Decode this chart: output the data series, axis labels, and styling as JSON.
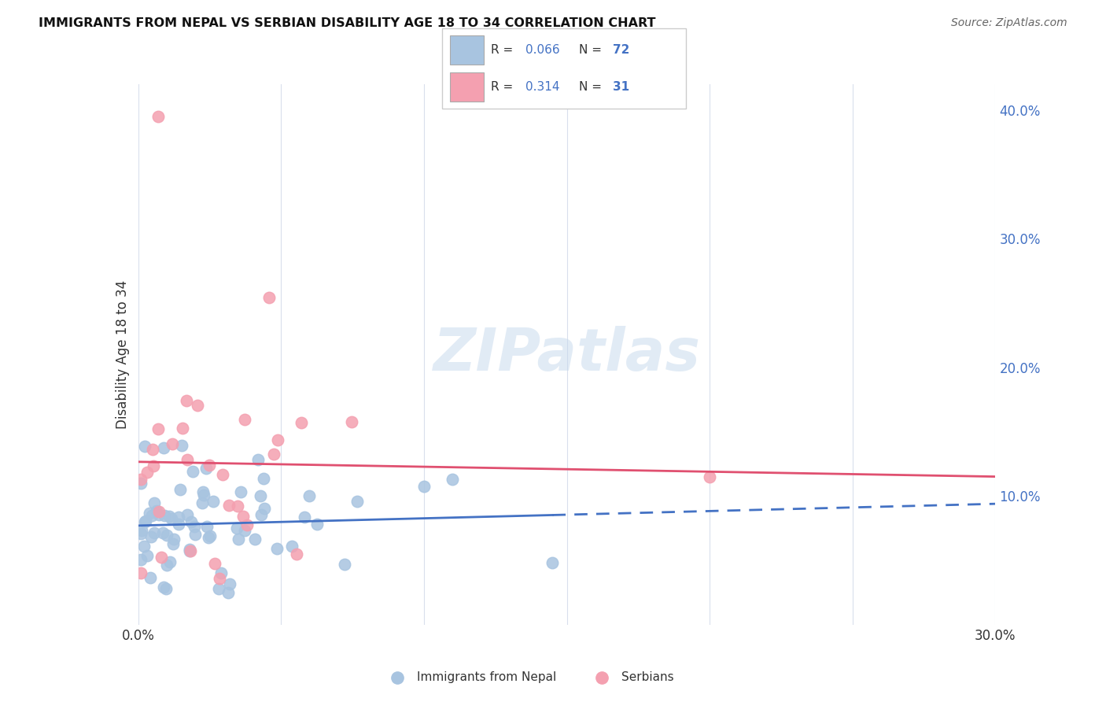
{
  "title": "IMMIGRANTS FROM NEPAL VS SERBIAN DISABILITY AGE 18 TO 34 CORRELATION CHART",
  "source": "Source: ZipAtlas.com",
  "ylabel": "Disability Age 18 to 34",
  "xlim": [
    0.0,
    0.3
  ],
  "ylim": [
    0.0,
    0.42
  ],
  "x_tick_positions": [
    0.0,
    0.05,
    0.1,
    0.15,
    0.2,
    0.25,
    0.3
  ],
  "x_tick_labels": [
    "0.0%",
    "",
    "",
    "",
    "",
    "",
    "30.0%"
  ],
  "y_ticks_right": [
    0.1,
    0.2,
    0.3,
    0.4
  ],
  "y_tick_labels_right": [
    "10.0%",
    "20.0%",
    "30.0%",
    "40.0%"
  ],
  "nepal_color": "#a8c4e0",
  "serbia_color": "#f4a0b0",
  "nepal_line_color": "#4472c4",
  "serbia_line_color": "#e05070",
  "nepal_R": 0.066,
  "nepal_N": 72,
  "serbia_R": 0.314,
  "serbia_N": 31,
  "legend_label_nepal": "Immigrants from Nepal",
  "legend_label_serbia": "Serbians",
  "watermark": "ZIPatlas",
  "label_color": "#4472c4",
  "text_color": "#333333",
  "grid_color": "#d0d8e8"
}
